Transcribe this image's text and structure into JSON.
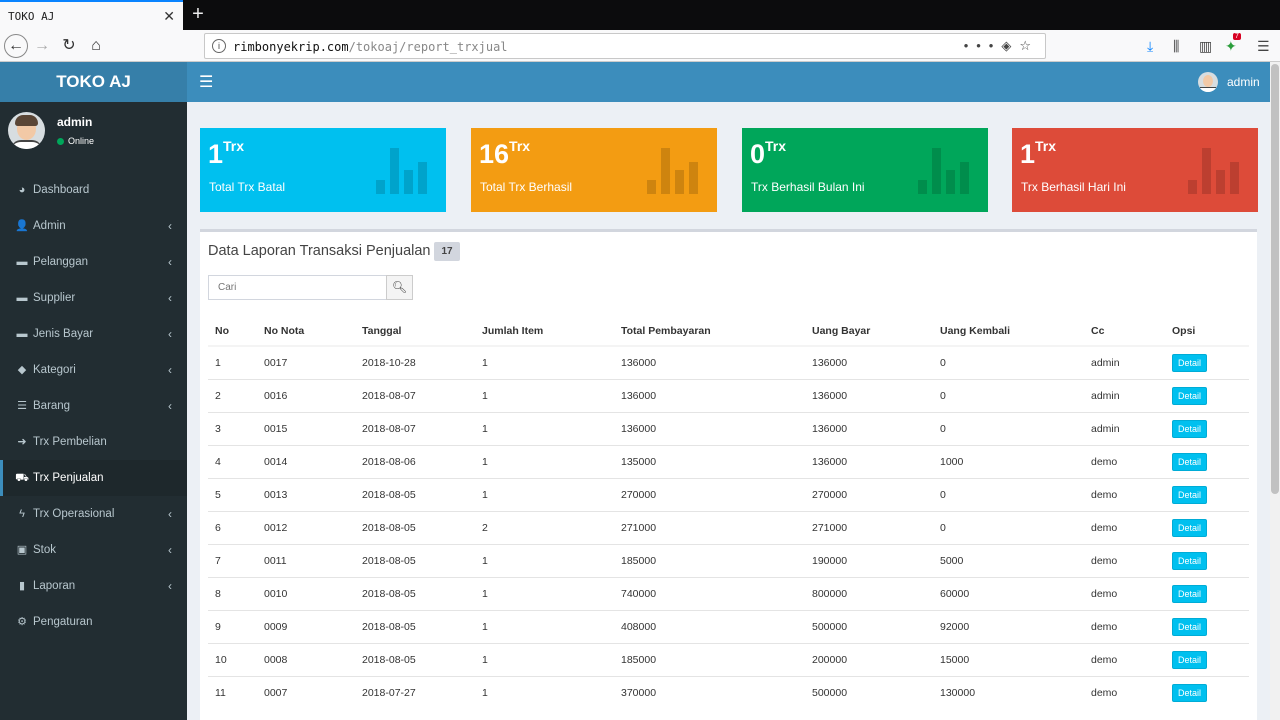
{
  "browser": {
    "tab_title": "TOKO AJ",
    "url_domain": "rimbonyekrip.com",
    "url_path": "/tokoaj/report_trxjual",
    "notification_count": "7"
  },
  "sidebar": {
    "logo": "TOKO AJ",
    "user_name": "admin",
    "user_status": "Online",
    "items": [
      {
        "label": "Dashboard",
        "icon": "dashboard-icon",
        "glyph": "◕",
        "chevron": false
      },
      {
        "label": "Admin",
        "icon": "user-icon",
        "glyph": "👤",
        "chevron": true
      },
      {
        "label": "Pelanggan",
        "icon": "folder-icon",
        "glyph": "▬",
        "chevron": true
      },
      {
        "label": "Supplier",
        "icon": "folder-icon",
        "glyph": "▬",
        "chevron": true
      },
      {
        "label": "Jenis Bayar",
        "icon": "folder-icon",
        "glyph": "▬",
        "chevron": true
      },
      {
        "label": "Kategori",
        "icon": "tag-icon",
        "glyph": "◆",
        "chevron": true
      },
      {
        "label": "Barang",
        "icon": "list-icon",
        "glyph": "☰",
        "chevron": true
      },
      {
        "label": "Trx Pembelian",
        "icon": "sign-in-icon",
        "glyph": "➜",
        "chevron": false
      },
      {
        "label": "Trx Penjualan",
        "icon": "cart-icon",
        "glyph": "⛟",
        "chevron": false,
        "active": true
      },
      {
        "label": "Trx Operasional",
        "icon": "bolt-icon",
        "glyph": "ϟ",
        "chevron": true
      },
      {
        "label": "Stok",
        "icon": "inbox-icon",
        "glyph": "▣",
        "chevron": true
      },
      {
        "label": "Laporan",
        "icon": "bar-chart-icon",
        "glyph": "▮",
        "chevron": true
      },
      {
        "label": "Pengaturan",
        "icon": "gear-icon",
        "glyph": "⚙",
        "chevron": false
      }
    ]
  },
  "header": {
    "user": "admin"
  },
  "stats": [
    {
      "value": "1",
      "unit": "Trx",
      "label": "Total Trx Batal",
      "color": "#00c0ef"
    },
    {
      "value": "16",
      "unit": "Trx",
      "label": "Total Trx Berhasil",
      "color": "#f39c12"
    },
    {
      "value": "0",
      "unit": "Trx",
      "label": "Trx Berhasil Bulan Ini",
      "color": "#00a65a"
    },
    {
      "value": "1",
      "unit": "Trx",
      "label": "Trx Berhasil Hari Ini",
      "color": "#dd4b39"
    }
  ],
  "report": {
    "title": "Data Laporan Transaksi Penjualan",
    "count": "17",
    "search_placeholder": "Cari",
    "columns": [
      "No",
      "No Nota",
      "Tanggal",
      "Jumlah Item",
      "Total Pembayaran",
      "Uang Bayar",
      "Uang Kembali",
      "Cc",
      "Opsi"
    ],
    "detail_label": "Detail",
    "rows": [
      [
        "1",
        "0017",
        "2018-10-28",
        "1",
        "136000",
        "136000",
        "0",
        "admin"
      ],
      [
        "2",
        "0016",
        "2018-08-07",
        "1",
        "136000",
        "136000",
        "0",
        "admin"
      ],
      [
        "3",
        "0015",
        "2018-08-07",
        "1",
        "136000",
        "136000",
        "0",
        "admin"
      ],
      [
        "4",
        "0014",
        "2018-08-06",
        "1",
        "135000",
        "136000",
        "1000",
        "demo"
      ],
      [
        "5",
        "0013",
        "2018-08-05",
        "1",
        "270000",
        "270000",
        "0",
        "demo"
      ],
      [
        "6",
        "0012",
        "2018-08-05",
        "2",
        "271000",
        "271000",
        "0",
        "demo"
      ],
      [
        "7",
        "0011",
        "2018-08-05",
        "1",
        "185000",
        "190000",
        "5000",
        "demo"
      ],
      [
        "8",
        "0010",
        "2018-08-05",
        "1",
        "740000",
        "800000",
        "60000",
        "demo"
      ],
      [
        "9",
        "0009",
        "2018-08-05",
        "1",
        "408000",
        "500000",
        "92000",
        "demo"
      ],
      [
        "10",
        "0008",
        "2018-08-05",
        "1",
        "185000",
        "200000",
        "15000",
        "demo"
      ],
      [
        "11",
        "0007",
        "2018-07-27",
        "1",
        "370000",
        "500000",
        "130000",
        "demo"
      ]
    ]
  }
}
